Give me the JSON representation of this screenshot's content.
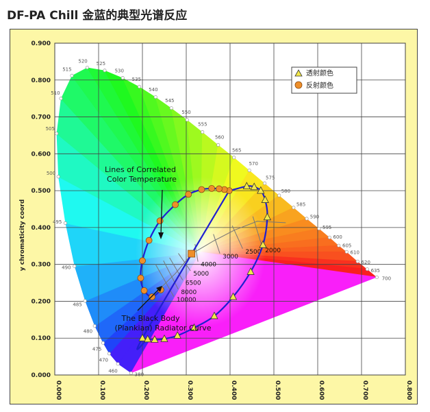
{
  "title": "DF-PA Chill 金蓝的典型光谱反应",
  "chart_data": {
    "type": "scatter",
    "title": "",
    "ylabel": "y chromaticity coord",
    "xlabel": "",
    "xlim": [
      0,
      0.8
    ],
    "ylim": [
      0,
      0.9
    ],
    "xticks": [
      "0.000",
      "0.100",
      "0.200",
      "0.300",
      "0.400",
      "0.500",
      "0.600",
      "0.700",
      "0.800"
    ],
    "yticks": [
      "0.000",
      "0.100",
      "0.200",
      "0.300",
      "0.400",
      "0.500",
      "0.600",
      "0.700",
      "0.800",
      "0.900"
    ],
    "grid": true,
    "legend_position": "top-right",
    "legend": [
      "透射颜色",
      "反射颜色"
    ],
    "colors": {
      "transmitted": "#f2e84a",
      "reflected": "#ee8f2a",
      "curve": "#1f1fd0"
    },
    "spectral_locus": [
      {
        "w": "380",
        "x": 0.174,
        "y": 0.005
      },
      {
        "w": "460",
        "x": 0.144,
        "y": 0.03
      },
      {
        "w": "470",
        "x": 0.124,
        "y": 0.058
      },
      {
        "w": "475",
        "x": 0.11,
        "y": 0.087
      },
      {
        "w": "480",
        "x": 0.091,
        "y": 0.133
      },
      {
        "w": "485",
        "x": 0.069,
        "y": 0.201
      },
      {
        "w": "490",
        "x": 0.045,
        "y": 0.295
      },
      {
        "w": "495",
        "x": 0.024,
        "y": 0.412
      },
      {
        "w": "500",
        "x": 0.008,
        "y": 0.538
      },
      {
        "w": "505",
        "x": 0.004,
        "y": 0.655
      },
      {
        "w": "510",
        "x": 0.014,
        "y": 0.75
      },
      {
        "w": "515",
        "x": 0.039,
        "y": 0.812
      },
      {
        "w": "520",
        "x": 0.074,
        "y": 0.834
      },
      {
        "w": "525",
        "x": 0.114,
        "y": 0.826
      },
      {
        "w": "530",
        "x": 0.155,
        "y": 0.806
      },
      {
        "w": "535",
        "x": 0.193,
        "y": 0.782
      },
      {
        "w": "540",
        "x": 0.23,
        "y": 0.754
      },
      {
        "w": "545",
        "x": 0.266,
        "y": 0.724
      },
      {
        "w": "550",
        "x": 0.302,
        "y": 0.692
      },
      {
        "w": "555",
        "x": 0.337,
        "y": 0.659
      },
      {
        "w": "560",
        "x": 0.373,
        "y": 0.624
      },
      {
        "w": "565",
        "x": 0.409,
        "y": 0.59
      },
      {
        "w": "570",
        "x": 0.444,
        "y": 0.555
      },
      {
        "w": "575",
        "x": 0.479,
        "y": 0.52
      },
      {
        "w": "580",
        "x": 0.512,
        "y": 0.487
      },
      {
        "w": "585",
        "x": 0.545,
        "y": 0.454
      },
      {
        "w": "590",
        "x": 0.575,
        "y": 0.424
      },
      {
        "w": "595",
        "x": 0.603,
        "y": 0.397
      },
      {
        "w": "600",
        "x": 0.627,
        "y": 0.373
      },
      {
        "w": "605",
        "x": 0.648,
        "y": 0.351
      },
      {
        "w": "610",
        "x": 0.666,
        "y": 0.334
      },
      {
        "w": "620",
        "x": 0.691,
        "y": 0.308
      },
      {
        "w": "635",
        "x": 0.713,
        "y": 0.287
      },
      {
        "w": "700",
        "x": 0.735,
        "y": 0.265
      }
    ],
    "series": [
      {
        "name": "透射颜色",
        "marker": "triangle",
        "points": [
          {
            "x": 0.2,
            "y": 0.1
          },
          {
            "x": 0.212,
            "y": 0.097
          },
          {
            "x": 0.228,
            "y": 0.096
          },
          {
            "x": 0.25,
            "y": 0.098
          },
          {
            "x": 0.28,
            "y": 0.107
          },
          {
            "x": 0.318,
            "y": 0.128
          },
          {
            "x": 0.364,
            "y": 0.16
          },
          {
            "x": 0.407,
            "y": 0.212
          },
          {
            "x": 0.447,
            "y": 0.28
          },
          {
            "x": 0.475,
            "y": 0.353
          },
          {
            "x": 0.485,
            "y": 0.428
          },
          {
            "x": 0.48,
            "y": 0.475
          },
          {
            "x": 0.47,
            "y": 0.5
          },
          {
            "x": 0.455,
            "y": 0.51
          },
          {
            "x": 0.438,
            "y": 0.512
          }
        ]
      },
      {
        "name": "反射颜色",
        "marker": "circle",
        "points": [
          {
            "x": 0.398,
            "y": 0.5
          },
          {
            "x": 0.387,
            "y": 0.503
          },
          {
            "x": 0.375,
            "y": 0.505
          },
          {
            "x": 0.358,
            "y": 0.506
          },
          {
            "x": 0.335,
            "y": 0.503
          },
          {
            "x": 0.305,
            "y": 0.49
          },
          {
            "x": 0.275,
            "y": 0.462
          },
          {
            "x": 0.24,
            "y": 0.418
          },
          {
            "x": 0.215,
            "y": 0.365
          },
          {
            "x": 0.2,
            "y": 0.31
          },
          {
            "x": 0.196,
            "y": 0.263
          },
          {
            "x": 0.204,
            "y": 0.229
          },
          {
            "x": 0.222,
            "y": 0.212
          },
          {
            "x": 0.242,
            "y": 0.231
          }
        ]
      }
    ],
    "special_point": {
      "x": 0.312,
      "y": 0.329
    },
    "blackbody_line": [
      {
        "x": 0.24,
        "y": 0.234
      },
      {
        "x": 0.275,
        "y": 0.275
      },
      {
        "x": 0.313,
        "y": 0.329
      },
      {
        "x": 0.363,
        "y": 0.364
      },
      {
        "x": 0.41,
        "y": 0.393
      },
      {
        "x": 0.462,
        "y": 0.417
      },
      {
        "x": 0.527,
        "y": 0.413
      }
    ],
    "cct_labels": [
      {
        "text": "10000",
        "x": 0.278,
        "y": 0.205
      },
      {
        "text": "8000",
        "x": 0.288,
        "y": 0.225
      },
      {
        "text": "6500",
        "x": 0.298,
        "y": 0.25
      },
      {
        "text": "5000",
        "x": 0.316,
        "y": 0.275
      },
      {
        "text": "4000",
        "x": 0.333,
        "y": 0.3
      },
      {
        "text": "3000",
        "x": 0.383,
        "y": 0.322
      },
      {
        "text": "2500",
        "x": 0.435,
        "y": 0.335
      },
      {
        "text": "2000",
        "x": 0.48,
        "y": 0.338
      }
    ],
    "annotations": [
      {
        "lines": [
          "Lines of Correlated",
          "Color Temperature"
        ]
      },
      {
        "lines": [
          "The Black Body",
          "(Plankian) Radiator Curve"
        ]
      }
    ]
  }
}
